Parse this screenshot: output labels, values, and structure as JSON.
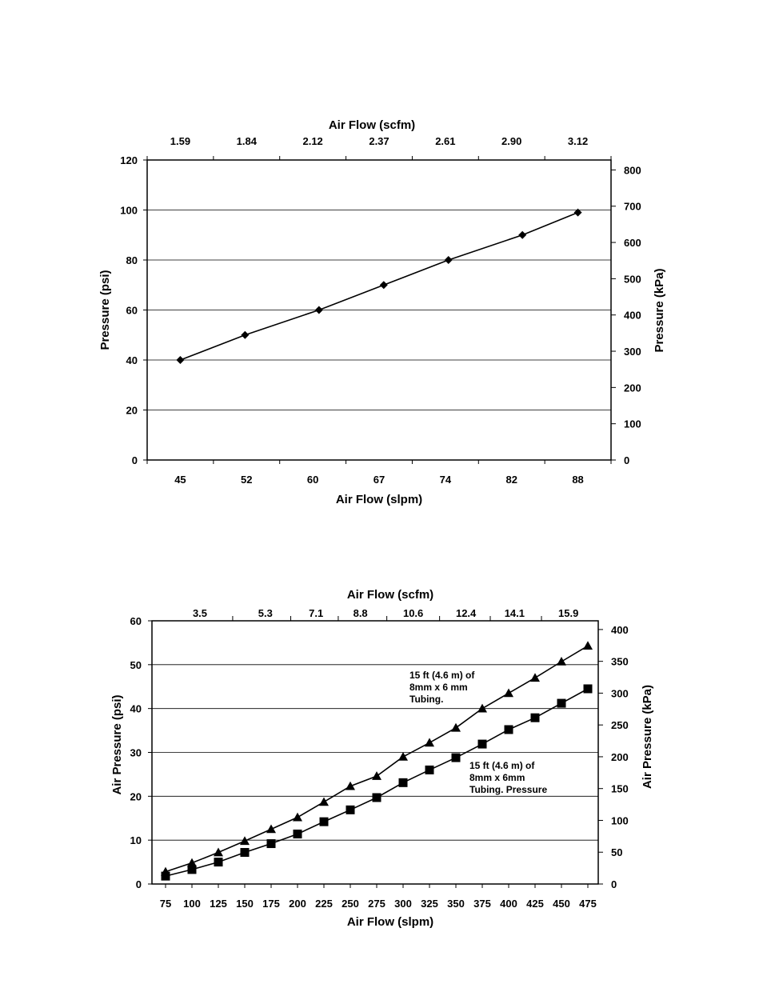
{
  "chart_data": [
    {
      "type": "line",
      "x_bottom": {
        "label": "Air Flow (slpm)",
        "ticks": [
          "45",
          "52",
          "60",
          "67",
          "74",
          "82",
          "88"
        ]
      },
      "x_top": {
        "label": "Air Flow (scfm)",
        "ticks": [
          "1.59",
          "1.84",
          "2.12",
          "2.37",
          "2.61",
          "2.90",
          "3.12"
        ]
      },
      "y_left": {
        "label": "Pressure (psi)",
        "ticks": [
          "0",
          "20",
          "40",
          "60",
          "80",
          "100",
          "120"
        ],
        "range": [
          0,
          120
        ]
      },
      "y_right": {
        "label": "Pressure (kPa)",
        "ticks": [
          "0",
          "100",
          "200",
          "300",
          "400",
          "500",
          "600",
          "700",
          "800"
        ],
        "range": [
          0,
          827.4
        ]
      },
      "grid": "horizontal",
      "series": [
        {
          "marker": "diamond",
          "x": [
            45,
            52,
            60,
            67,
            74,
            82,
            88
          ],
          "values": [
            40,
            50,
            60,
            70,
            80,
            90,
            99
          ]
        }
      ]
    },
    {
      "type": "line",
      "x_bottom": {
        "label": "Air Flow (slpm)",
        "ticks": [
          "75",
          "100",
          "125",
          "150",
          "175",
          "200",
          "225",
          "250",
          "275",
          "300",
          "325",
          "350",
          "375",
          "400",
          "425",
          "450",
          "475"
        ]
      },
      "x_top": {
        "label": "Air Flow (scfm)",
        "ticks": [
          {
            "label": "3.5",
            "at": 100
          },
          {
            "label": "5.3",
            "at": 162
          },
          {
            "label": "7.1",
            "at": 210
          },
          {
            "label": "8.8",
            "at": 252
          },
          {
            "label": "10.6",
            "at": 302
          },
          {
            "label": "12.4",
            "at": 352
          },
          {
            "label": "14.1",
            "at": 398
          },
          {
            "label": "15.9",
            "at": 449
          }
        ]
      },
      "y_left": {
        "label": "Air Pressure (psi)",
        "ticks": [
          "0",
          "10",
          "20",
          "30",
          "40",
          "50",
          "60"
        ],
        "range": [
          0,
          60
        ]
      },
      "y_right": {
        "label": "Air Pressure (kPa)",
        "ticks": [
          "0",
          "50",
          "100",
          "150",
          "200",
          "250",
          "300",
          "350",
          "400"
        ],
        "range": [
          0,
          413.7
        ]
      },
      "grid": "horizontal",
      "series": [
        {
          "marker": "triangle",
          "x": [
            75,
            100,
            125,
            150,
            175,
            200,
            225,
            250,
            275,
            300,
            325,
            350,
            375,
            400,
            425,
            450,
            475
          ],
          "values": [
            2.8,
            4.8,
            7.2,
            9.8,
            12.5,
            15.2,
            18.7,
            22.3,
            24.6,
            29.0,
            32.2,
            35.6,
            40.0,
            43.5,
            47.0,
            50.7,
            54.3
          ]
        },
        {
          "marker": "square",
          "x": [
            75,
            100,
            125,
            150,
            175,
            200,
            225,
            250,
            275,
            300,
            325,
            350,
            375,
            400,
            425,
            450,
            475
          ],
          "values": [
            1.8,
            3.3,
            5.0,
            7.2,
            9.2,
            11.4,
            14.2,
            16.9,
            19.7,
            23.1,
            26.0,
            28.8,
            31.9,
            35.2,
            37.9,
            41.2,
            44.5
          ]
        }
      ],
      "annotations": [
        {
          "lines": [
            "15 ft (4.6 m) of",
            "8mm x 6 mm",
            "Tubing."
          ]
        },
        {
          "lines": [
            "15 ft (4.6 m) of",
            "8mm x 6mm",
            "Tubing. Pressure"
          ]
        }
      ]
    }
  ]
}
